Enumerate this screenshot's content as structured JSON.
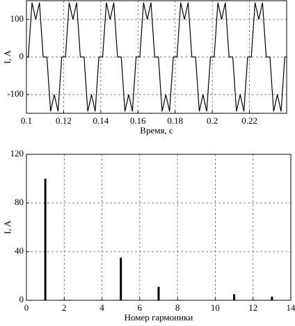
{
  "chart_data": [
    {
      "type": "line",
      "xlabel": "Время, с",
      "ylabel": "I, A",
      "x": [
        0.1,
        0.101,
        0.103,
        0.105,
        0.107,
        0.109,
        0.111,
        0.113,
        0.115,
        0.117,
        0.119,
        0.121,
        0.123,
        0.125,
        0.127,
        0.129,
        0.131,
        0.133,
        0.135,
        0.137,
        0.139,
        0.141,
        0.143,
        0.145,
        0.147,
        0.149,
        0.151,
        0.153,
        0.155,
        0.157,
        0.159,
        0.161,
        0.163,
        0.165,
        0.167,
        0.169,
        0.171,
        0.173,
        0.175,
        0.177,
        0.179,
        0.181,
        0.183,
        0.185,
        0.187,
        0.189,
        0.191,
        0.193,
        0.195,
        0.197,
        0.199,
        0.201,
        0.203,
        0.205,
        0.207,
        0.209,
        0.211,
        0.213,
        0.215,
        0.217,
        0.219,
        0.221,
        0.223,
        0.225,
        0.227,
        0.229,
        0.231,
        0.233,
        0.235,
        0.237,
        0.239,
        0.24
      ],
      "values": [
        0,
        0,
        145,
        100,
        145,
        0,
        0,
        -145,
        -100,
        -145,
        0,
        0,
        145,
        100,
        145,
        0,
        0,
        -145,
        -100,
        -145,
        0,
        0,
        145,
        100,
        145,
        0,
        0,
        -145,
        -100,
        -145,
        0,
        0,
        145,
        100,
        145,
        0,
        0,
        -145,
        -100,
        -145,
        0,
        0,
        145,
        100,
        145,
        0,
        0,
        -145,
        -100,
        -145,
        0,
        0,
        145,
        100,
        145,
        0,
        0,
        -145,
        -100,
        -145,
        0,
        0,
        145,
        100,
        145,
        0,
        0,
        -145,
        -100,
        -145,
        0,
        0
      ],
      "color": "#000000",
      "xlim": [
        0.1,
        0.24
      ],
      "xticks": [
        0.1,
        0.12,
        0.14,
        0.16,
        0.18,
        0.2,
        0.22
      ],
      "ylim": [
        -150,
        150
      ],
      "yticks": [
        -100,
        0,
        100
      ],
      "grid": true
    },
    {
      "type": "bar",
      "xlabel": "Номер гармоники",
      "ylabel": "I, A",
      "x": [
        1,
        5,
        7,
        11,
        13
      ],
      "values": [
        100,
        35,
        11,
        5,
        3
      ],
      "color": "#000000",
      "xlim": [
        0,
        14
      ],
      "xticks": [
        0,
        2,
        4,
        6,
        8,
        10,
        12,
        14
      ],
      "ylim": [
        0,
        120
      ],
      "yticks": [
        0,
        40,
        80,
        120
      ],
      "grid": true
    }
  ]
}
